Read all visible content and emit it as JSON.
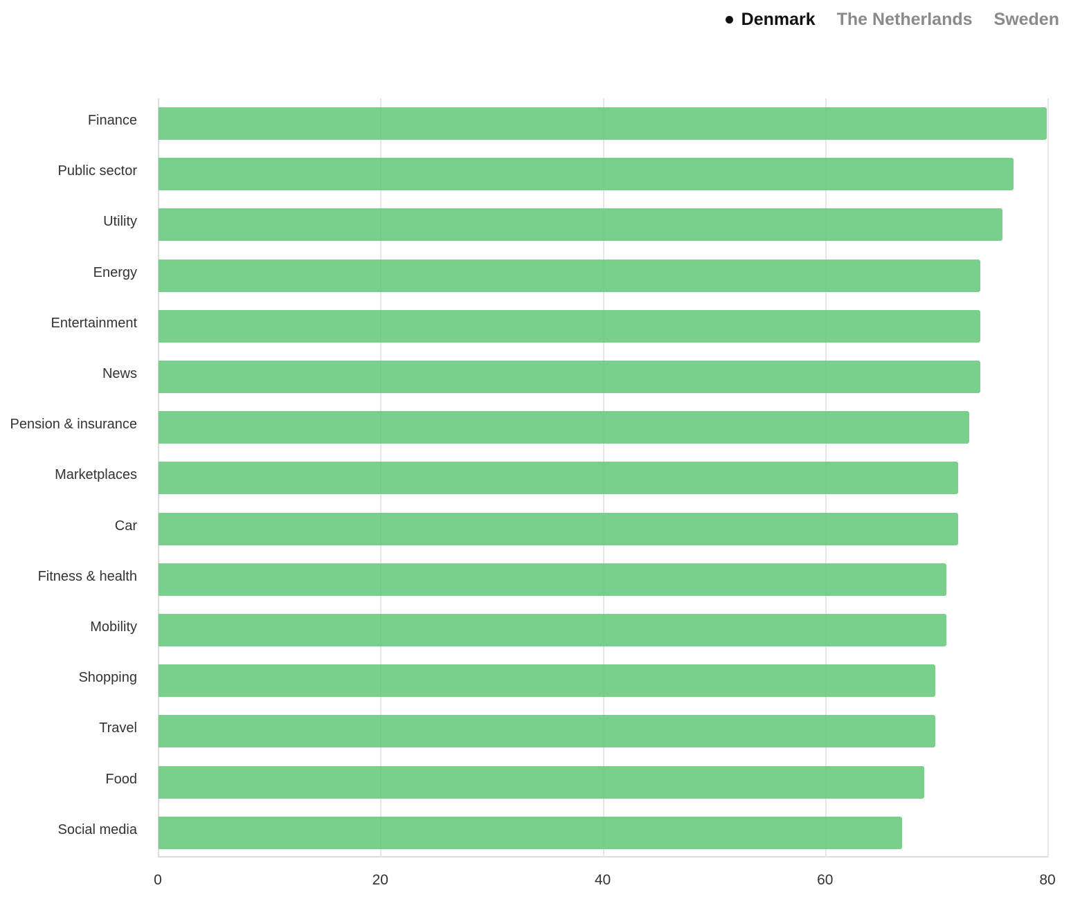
{
  "legend": {
    "items": [
      {
        "label": "Denmark",
        "active": true
      },
      {
        "label": "The Netherlands",
        "active": false
      },
      {
        "label": "Sweden",
        "active": false
      }
    ]
  },
  "colors": {
    "bar": "#76cc85",
    "grid": "#e6e6e6",
    "active_legend": "#111111",
    "inactive_legend": "#8a8a8a"
  },
  "chart_data": {
    "type": "bar",
    "orientation": "horizontal",
    "title": "",
    "xlabel": "",
    "ylabel": "",
    "xlim": [
      0,
      80
    ],
    "x_ticks": [
      "0",
      "20",
      "40",
      "60",
      "80"
    ],
    "grid": true,
    "legend_position": "top-right",
    "selected_series": "Denmark",
    "categories": [
      "Finance",
      "Public sector",
      "Utility",
      "Energy",
      "Entertainment",
      "News",
      "Pension & insurance",
      "Marketplaces",
      "Car",
      "Fitness & health",
      "Mobility",
      "Shopping",
      "Travel",
      "Food",
      "Social media"
    ],
    "series": [
      {
        "name": "Denmark",
        "values": [
          80,
          77,
          76,
          74,
          74,
          74,
          73,
          72,
          72,
          71,
          71,
          70,
          70,
          69,
          67
        ]
      }
    ]
  }
}
